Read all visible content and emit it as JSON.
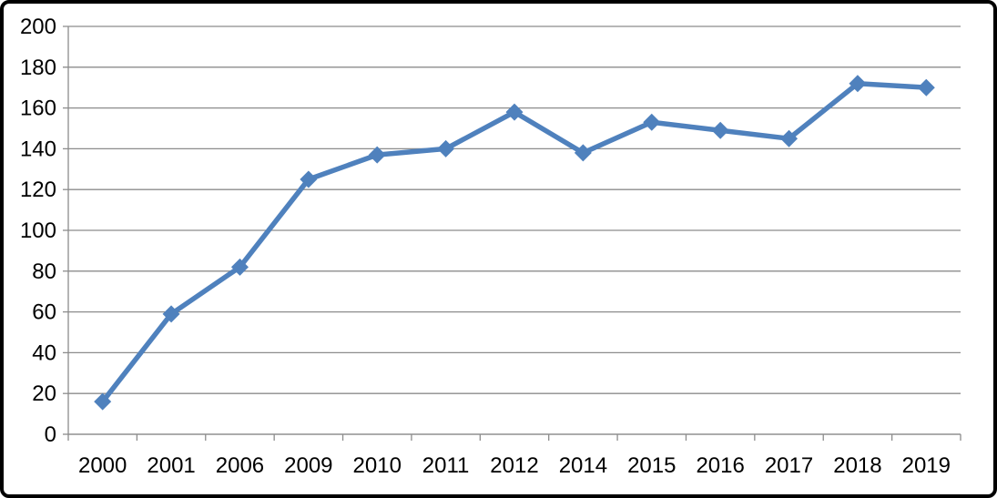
{
  "chart": {
    "background_color": "#FFFFFF",
    "frame_border_color": "#000000",
    "gridline_color": "#8C8C8C",
    "axis_color": "#8C8C8C",
    "tick_label_color": "#000000"
  },
  "chart_data": {
    "type": "line",
    "categories": [
      "2000",
      "2001",
      "2006",
      "2009",
      "2010",
      "2011",
      "2012",
      "2014",
      "2015",
      "2016",
      "2017",
      "2018",
      "2019"
    ],
    "series": [
      {
        "values": [
          16,
          59,
          82,
          125,
          137,
          140,
          158,
          138,
          153,
          149,
          145,
          172,
          170
        ],
        "color": "#4F81BD",
        "marker": "diamond"
      }
    ],
    "ylim": [
      0,
      200
    ],
    "y_ticks": [
      0,
      20,
      40,
      60,
      80,
      100,
      120,
      140,
      160,
      180,
      200
    ],
    "y_tick_labels": [
      "0",
      "20",
      "40",
      "60",
      "80",
      "100",
      "120",
      "140",
      "160",
      "180",
      "200"
    ],
    "grid": true,
    "legend_position": "none"
  }
}
